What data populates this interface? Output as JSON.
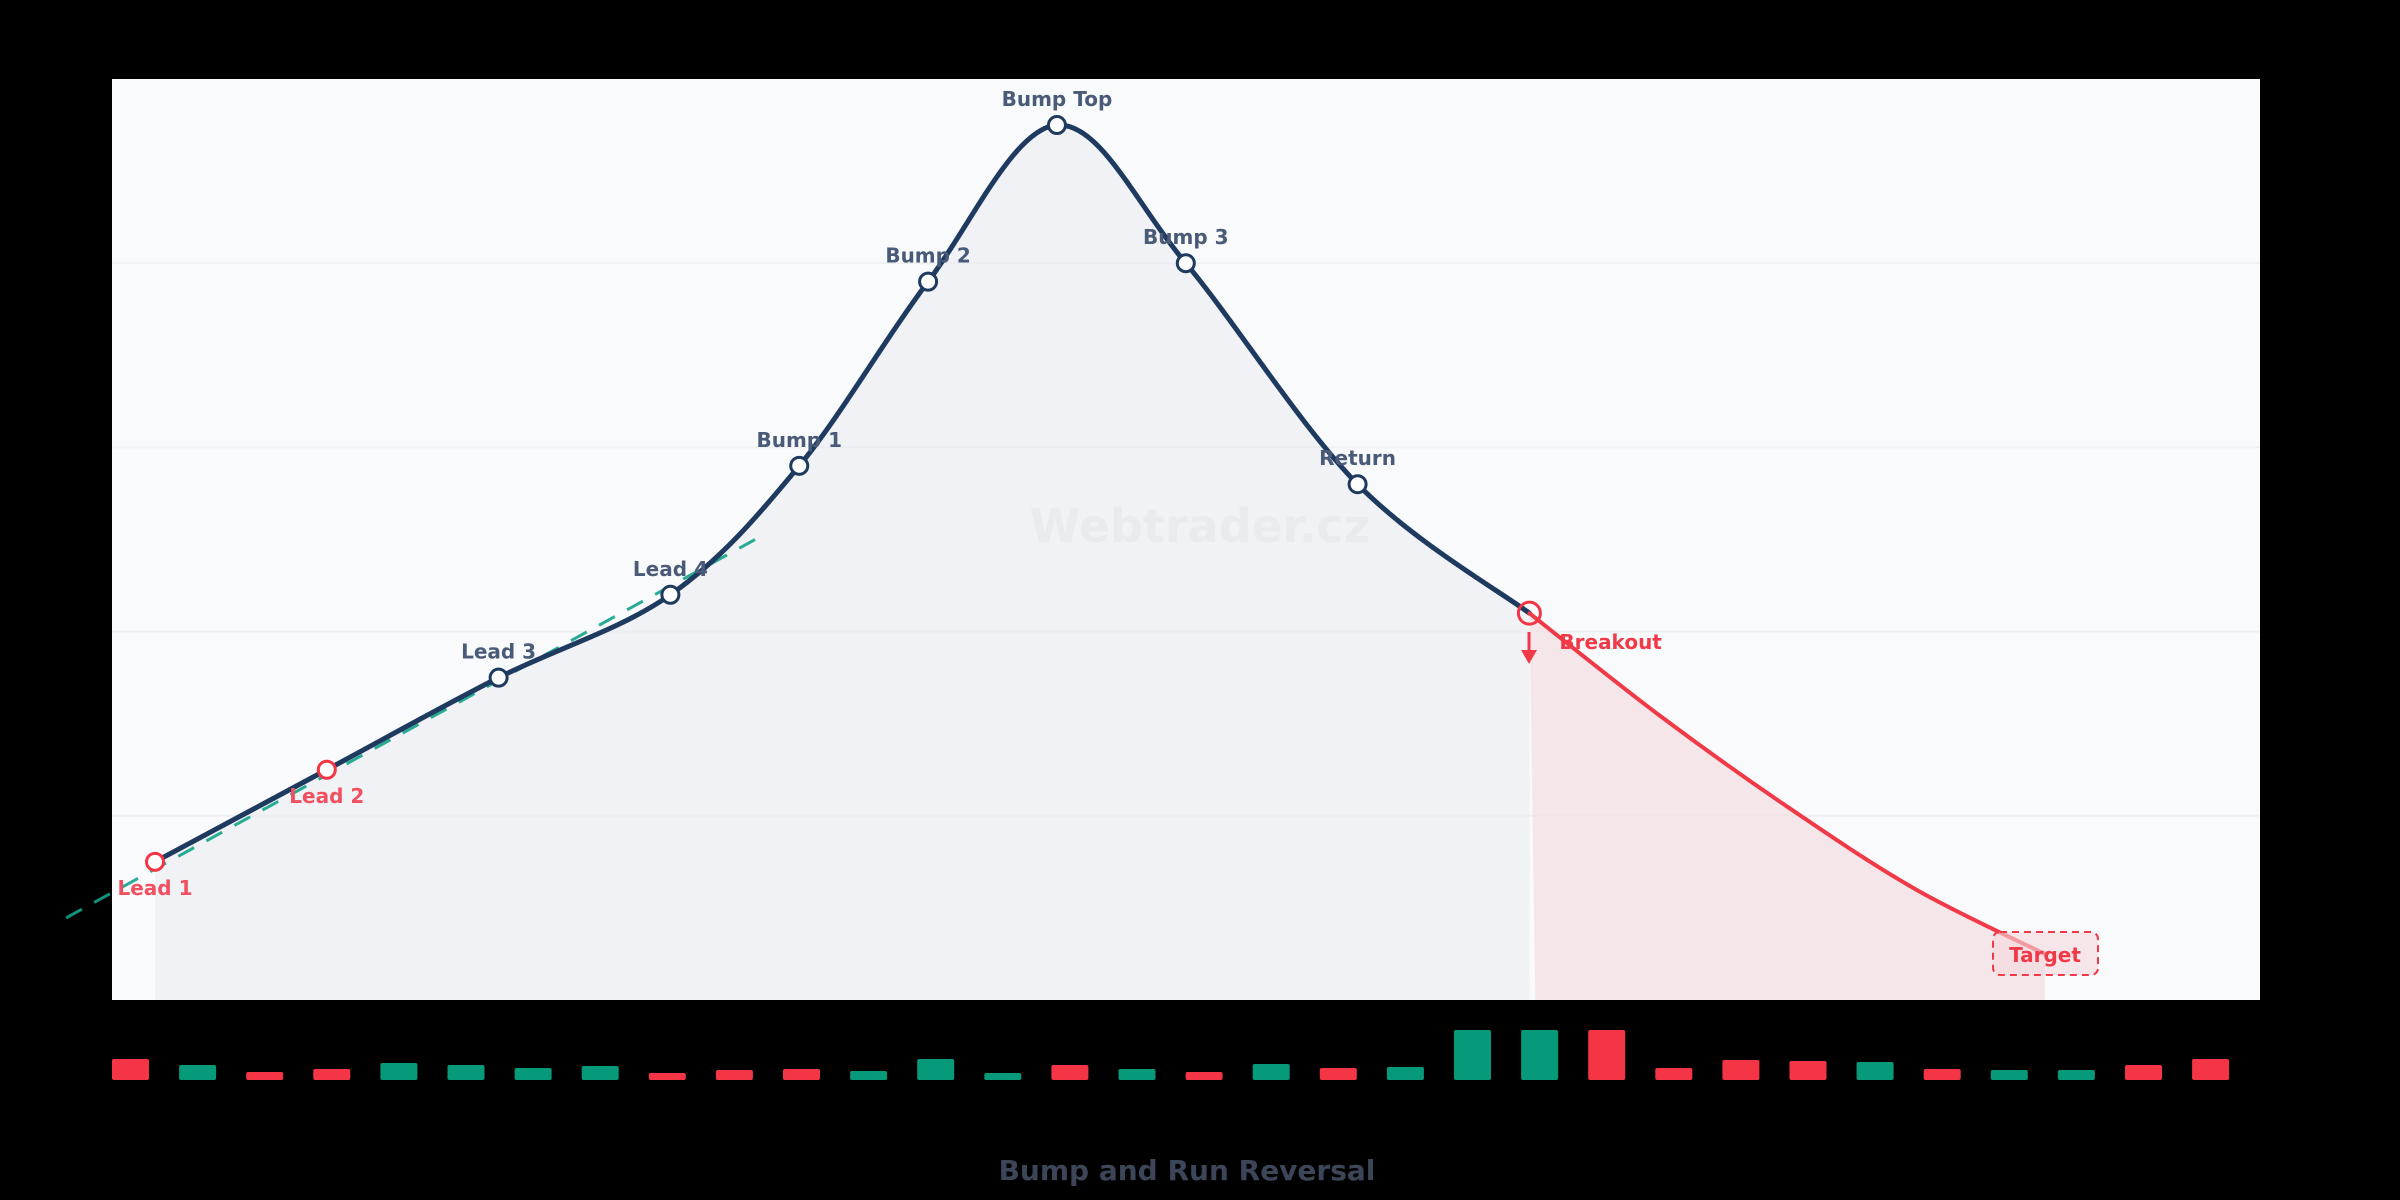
{
  "chart_data": {
    "type": "line",
    "title": "Bump and Run Reversal",
    "watermark": "Webtrader.cz",
    "xlabel": "",
    "ylabel": "",
    "ylim": [
      0,
      100
    ],
    "grid": true,
    "gridlines_y": [
      20,
      40,
      60,
      80
    ],
    "legend": "none",
    "points": [
      {
        "name": "Lead 1",
        "x": 0,
        "y": 15,
        "color": "#f0505f",
        "label_pos": "below",
        "marker": "red"
      },
      {
        "name": "Lead 2",
        "x": 4,
        "y": 25,
        "color": "#f0505f",
        "label_pos": "below",
        "marker": "red"
      },
      {
        "name": "Lead 3",
        "x": 8,
        "y": 35,
        "color": "#4a5b78",
        "label_pos": "above",
        "marker": "navy"
      },
      {
        "name": "Lead 4",
        "x": 12,
        "y": 44,
        "color": "#4a5b78",
        "label_pos": "above",
        "marker": "navy"
      },
      {
        "name": "Bump 1",
        "x": 15,
        "y": 58,
        "color": "#4a5b78",
        "label_pos": "above",
        "marker": "navy"
      },
      {
        "name": "Bump 2",
        "x": 18,
        "y": 78,
        "color": "#4a5b78",
        "label_pos": "above",
        "marker": "navy"
      },
      {
        "name": "Bump Top",
        "x": 21,
        "y": 95,
        "color": "#4a5b78",
        "label_pos": "above",
        "marker": "navy"
      },
      {
        "name": "Bump 3",
        "x": 24,
        "y": 80,
        "color": "#4a5b78",
        "label_pos": "above",
        "marker": "navy"
      },
      {
        "name": "Return",
        "x": 28,
        "y": 56,
        "color": "#4a5b78",
        "label_pos": "above",
        "marker": "navy"
      },
      {
        "name": "Breakout",
        "x": 32,
        "y": 42,
        "color": "#f03a47",
        "label_pos": "right",
        "marker": "breakout"
      }
    ],
    "breakdown_series": {
      "name": "Breakdown",
      "x": [
        32,
        35,
        38,
        41,
        44
      ],
      "y": [
        42,
        31,
        21,
        12,
        5
      ]
    },
    "target": {
      "label": "Target",
      "x": 44,
      "y": 5
    },
    "trendline": {
      "name": "Lead trendline",
      "x": [
        -2,
        14
      ],
      "y": [
        10,
        50
      ]
    },
    "volume": {
      "values": [
        21,
        15,
        8,
        11,
        17,
        15,
        12,
        14,
        7,
        10,
        11,
        9,
        21,
        7,
        15,
        11,
        8,
        16,
        12,
        13,
        50,
        50,
        50,
        12,
        20,
        19,
        18,
        11,
        10,
        10,
        15,
        21
      ],
      "direction": [
        "down",
        "up",
        "down",
        "down",
        "up",
        "up",
        "up",
        "up",
        "down",
        "down",
        "down",
        "up",
        "up",
        "up",
        "down",
        "up",
        "down",
        "up",
        "down",
        "up",
        "up",
        "up",
        "down",
        "down",
        "down",
        "down",
        "up",
        "down",
        "up",
        "up",
        "down",
        "down"
      ]
    }
  },
  "colors": {
    "background": "#000000",
    "plot_bg": "#f8fafc",
    "grid": "#eef0f3",
    "line": "#1e3a5f",
    "area": "#eceef2",
    "bearish": "#f43545",
    "bullish": "#079a7a",
    "trendline": "#12a38a",
    "breakdown_area": "#f5e1e4",
    "label": "#4a5b78",
    "lead_label": "#f0505f",
    "title": "#3d4658",
    "watermark": "#e8ebf0"
  }
}
